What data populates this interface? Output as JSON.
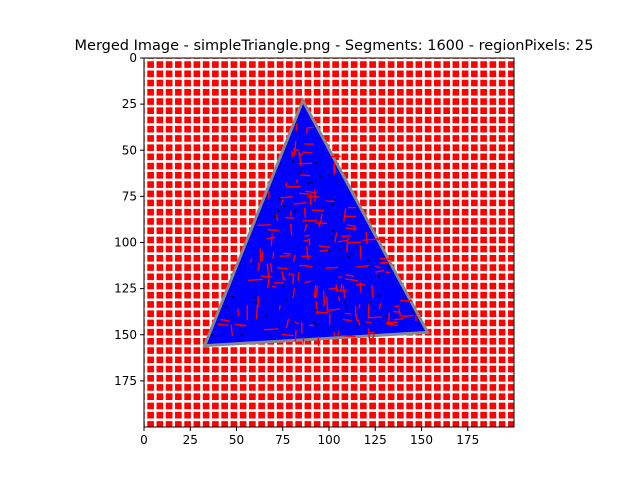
{
  "chart_data": {
    "type": "heatmap",
    "title": "Merged Image - simpleTriangle.png - Segments: 1600 - regionPixels: 25",
    "xlabel": "",
    "ylabel": "",
    "xlim": [
      0,
      200
    ],
    "ylim": [
      200,
      0
    ],
    "x_ticks": [
      "0",
      "25",
      "50",
      "75",
      "100",
      "125",
      "150",
      "175"
    ],
    "y_ticks": [
      "0",
      "25",
      "50",
      "75",
      "100",
      "125",
      "150",
      "175"
    ],
    "x_tick_values": [
      0,
      25,
      50,
      75,
      100,
      125,
      150,
      175
    ],
    "y_tick_values": [
      0,
      25,
      50,
      75,
      100,
      125,
      150,
      175
    ],
    "grid_spacing": 5,
    "triangle": {
      "apex": [
        86,
        25
      ],
      "base_left": [
        34,
        155
      ],
      "base_right": [
        152,
        148
      ]
    },
    "colors": {
      "background": "#ff0000",
      "grid": "#ffffff",
      "shape": "#0000ff",
      "segment_border": "#ff0000",
      "edge": "#888888"
    }
  }
}
